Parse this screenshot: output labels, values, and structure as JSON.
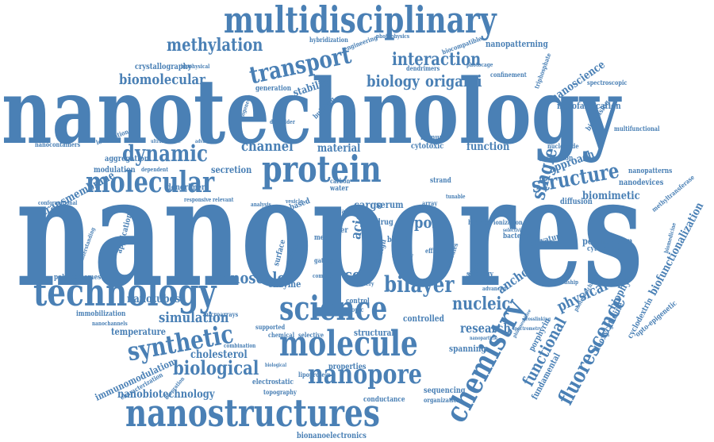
{
  "colors": {
    "word": "#4a80b5",
    "background": "#ffffff"
  },
  "words": {
    "nanotechnology": "nanotechnology",
    "nanopores": "nanopores",
    "multidisciplinary": "multidisciplinary",
    "nanostructures": "nanostructures",
    "technology": "technology",
    "science": "science",
    "molecule": "molecule",
    "protein": "protein",
    "molecular": "molecular",
    "chemistry": "chemistry",
    "nanopore": "nanopore",
    "transport": "transport",
    "methylation": "methylation",
    "interaction": "interaction",
    "biology": "biology",
    "origami": "origami",
    "biomolecular": "biomolecular",
    "dynamic": "dynamic",
    "structure": "structure",
    "synthetic": "synthetic",
    "biological": "biological",
    "bilayer": "bilayer",
    "fluorescence": "fluorescence",
    "functional": "functional",
    "nanoscale": "nanoscale",
    "nanotubes": "nanotubes",
    "simulation": "simulation",
    "single": "single",
    "nanobiotechnology": "nanobiotechnology",
    "cholesterol": "cholesterol",
    "nucleic": "nucleic",
    "physical": "physical",
    "cell": "cell",
    "pore": "pore",
    "channel": "channel",
    "material": "material",
    "function": "function",
    "approach": "approach",
    "research": "research",
    "acid": "acid",
    "anchor": "anchor",
    "enzyme": "enzyme",
    "stability": "stability",
    "secretion": "secretion",
    "dendrimer": "dendrimer",
    "nanoscience": "nanoscience",
    "nanofabrication": "nanofabrication",
    "crystallography": "crystallography",
    "nanopatterning": "nanopatterning",
    "hybridization": "hybridization",
    "engineering": "engineering",
    "dendrimers": "dendrimers",
    "biocompatible": "biocompatible",
    "confinement": "confinement",
    "transmembrane": "transmembrane",
    "nanocontainers": "nanocontainers",
    "aggregation": "aggregation",
    "modulation": "modulation",
    "conformational": "conformational",
    "application": "application",
    "polymersomes": "polymersomes",
    "immobilization": "immobilization",
    "nanochannels": "nanochannels",
    "temperature": "temperature",
    "immunomodulation": "immunomodulation",
    "biomimetic": "biomimetic",
    "nanodevices": "nanodevices",
    "nanopatterns": "nanopatterns",
    "biofunctionalization": "biofunctionalization",
    "permeation": "permeation",
    "cytometry": "cytometry",
    "biophysic": "biophysic",
    "porphyrin": "porphyrin",
    "fundamental": "fundamental",
    "deoxycytidine": "deoxycytidine",
    "cyclodextrin": "cyclodextrin",
    "opto-epigenetic": "opto-epigenetic",
    "sequencing": "sequencing",
    "organization": "organization",
    "conductance": "conductance",
    "bionanoelectronics": "bionanoelectronics",
    "spanning": "spanning",
    "controlled": "controlled",
    "structural": "structural",
    "properties": "properties",
    "electrostatic": "electrostatic",
    "topography": "topography",
    "lipoprotein": "lipoprotein",
    "supported": "supported",
    "chemical": "chemical",
    "selective": "selective",
    "cargo": "cargo",
    "serum": "serum",
    "based": "based",
    "cytotoxic": "cytotoxic",
    "immune": "immune",
    "strand": "strand",
    "resolution": "resolution",
    "diffusion": "diffusion",
    "biosensing": "biosensing",
    "nucleoside": "nucleoside",
    "multifunctional": "multifunctional",
    "spectroscopic": "spectroscopic",
    "triphosphate": "triphosphate",
    "photocage": "photocage",
    "generation": "generation",
    "dielsalder": "dielsalder",
    "building": "building",
    "photophysics": "photophysics",
    "biophysical": "biophysical",
    "localization": "localization",
    "dependent": "dependent",
    "responsive": "responsive",
    "relevant": "relevant",
    "microarrays": "microarrays",
    "combination": "combination",
    "characterization": "characterization",
    "delivery": "delivery",
    "surface": "surface",
    "layer": "layer",
    "drug": "drug",
    "design": "design",
    "photo": "photo",
    "blood": "blood",
    "activity": "activity",
    "gating": "gating",
    "media": "media",
    "efficient": "efficient",
    "strategy": "strategy",
    "individual": "individual",
    "hybrid": "hybrid",
    "ionization": "ionization",
    "array": "array",
    "tunable": "tunable",
    "bacterial": "bacterial",
    "curvature": "curvature",
    "relationship": "relationship",
    "water": "water",
    "carbon": "carbon",
    "studies": "studies",
    "advanced": "advanced",
    "control": "control",
    "gate": "gate",
    "topic": "topic",
    "complex": "complex",
    "biomedicine": "biomedicine",
    "understanding": "understanding",
    "methyltransferase": "methyltransferase",
    "selectivity": "selectivity",
    "insight": "insight",
    "vesicle": "vesicle",
    "decoration": "decoration",
    "advantage": "advantage",
    "ultrasensitive": "ultrasensitive",
    "biological2": "biological",
    "nanoparticle": "nanoparticle",
    "analysis": "analysis",
    "epigenetic": "epigenetic",
    "photosensitive": "photosensitive",
    "crosslinking": "crosslinking",
    "photoswitchable": "photoswitchable",
    "spectrometry": "spectrometry"
  }
}
